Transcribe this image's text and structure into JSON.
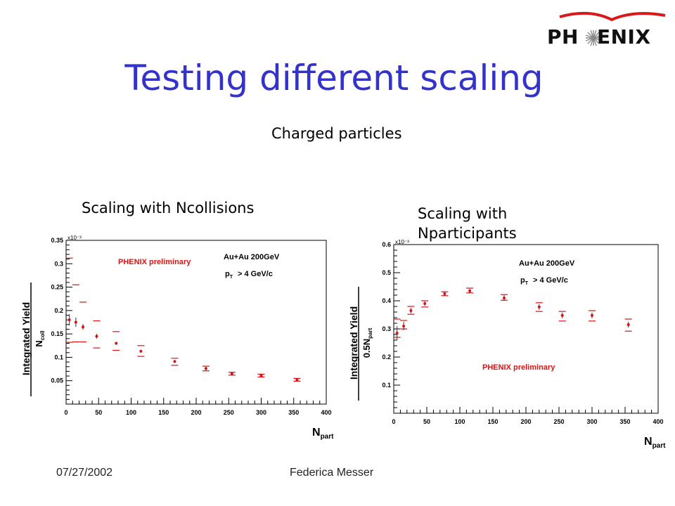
{
  "slide": {
    "title": "Testing different scaling",
    "subtitle": "Charged particles",
    "label_left": "Scaling with Ncollisions",
    "label_right": "Scaling with Nparticipants",
    "footer_date": "07/27/2002",
    "footer_author": "Federica Messer",
    "logo": {
      "left": "PH",
      "right": "ENIX",
      "icon": "phoenix-starburst-logo"
    }
  },
  "colors": {
    "title": "#3333cc",
    "data": "#dd1111",
    "annotation": "#dd1111"
  },
  "chart_data": [
    {
      "type": "scatter",
      "title": "",
      "xlabel": "N_part",
      "ylabel": "Integrated Yield / N_coll",
      "exponent": "x10⁻³",
      "xlim": [
        0,
        400
      ],
      "ylim": [
        0,
        0.35
      ],
      "xticks": [
        0,
        50,
        100,
        150,
        200,
        250,
        300,
        350,
        400
      ],
      "yticks": [
        0.05,
        0.1,
        0.15,
        0.2,
        0.25,
        0.3,
        0.35
      ],
      "annotations": [
        "PHENIX preliminary",
        "Au+Au 200GeV",
        "p_T > 4 GeV/c"
      ],
      "series": [
        {
          "x": [
            5,
            15,
            26,
            47,
            77,
            115,
            167,
            215,
            255,
            300,
            355
          ],
          "y": [
            0.18,
            0.175,
            0.165,
            0.145,
            0.13,
            0.113,
            0.091,
            0.076,
            0.065,
            0.061,
            0.052
          ],
          "err": [
            0.012,
            0.01,
            0.006,
            0.005,
            0.003,
            0.003,
            0.003,
            0.004,
            0.004,
            0.004,
            0.003
          ],
          "sys_low": [
            0.132,
            0.133,
            0.133,
            0.12,
            0.115,
            0.102,
            0.083,
            0.071,
            0.062,
            0.058,
            0.049
          ],
          "sys_high": [
            0.312,
            0.255,
            0.218,
            0.178,
            0.155,
            0.125,
            0.098,
            0.081,
            0.068,
            0.064,
            0.055
          ]
        }
      ]
    },
    {
      "type": "scatter",
      "title": "",
      "xlabel": "N_part",
      "ylabel": "Integrated Yield / 0.5N_part",
      "exponent": "x10⁻³",
      "xlim": [
        0,
        400
      ],
      "ylim": [
        0,
        0.6
      ],
      "xticks": [
        0,
        50,
        100,
        150,
        200,
        250,
        300,
        350,
        400
      ],
      "yticks": [
        0.1,
        0.2,
        0.3,
        0.4,
        0.5,
        0.6
      ],
      "annotations": [
        "Au+Au 200GeV",
        "p_T > 4 GeV/c",
        "PHENIX preliminary"
      ],
      "series": [
        {
          "x": [
            5,
            15,
            26,
            47,
            77,
            115,
            167,
            220,
            255,
            300,
            355
          ],
          "y": [
            0.285,
            0.31,
            0.365,
            0.39,
            0.425,
            0.435,
            0.41,
            0.378,
            0.348,
            0.348,
            0.315
          ],
          "err": [
            0.025,
            0.015,
            0.01,
            0.008,
            0.008,
            0.008,
            0.01,
            0.01,
            0.01,
            0.01,
            0.01
          ],
          "sys_low": [
            0.27,
            0.3,
            0.352,
            0.378,
            0.418,
            0.428,
            0.402,
            0.362,
            0.328,
            0.328,
            0.292
          ],
          "sys_high": [
            0.335,
            0.33,
            0.38,
            0.4,
            0.432,
            0.445,
            0.422,
            0.393,
            0.362,
            0.365,
            0.335
          ]
        }
      ]
    }
  ]
}
